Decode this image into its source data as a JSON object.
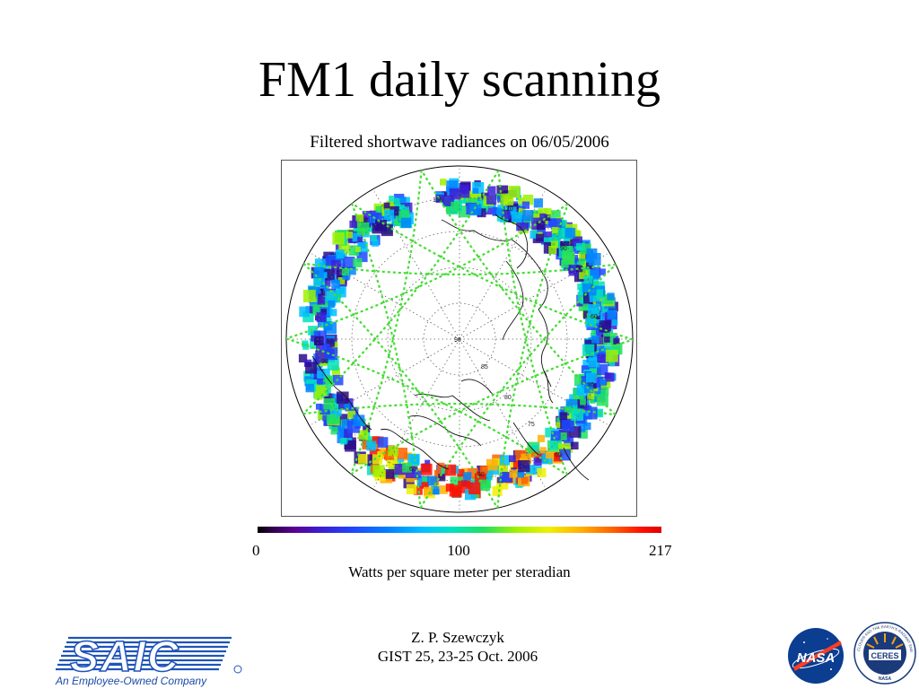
{
  "slide": {
    "title": "FM1 daily scanning",
    "subtitle": "Filtered shortwave radiances on 06/05/2006"
  },
  "map": {
    "grid_labels": [
      "150",
      "120",
      "90",
      "60",
      "30",
      "90",
      "85",
      "80",
      "75",
      "65",
      "90",
      "60",
      "30"
    ],
    "colors": {
      "track": "#44dd33",
      "coast": "#111111",
      "grid": "#666666"
    }
  },
  "colorbar": {
    "min_label": "0",
    "mid_label": "100",
    "max_label": "217",
    "units": "Watts per square meter per steradian"
  },
  "footer": {
    "author": "Z. P. Szewczyk",
    "event": "GIST 25, 23-25 Oct. 2006",
    "saic_logo_text": "SAIC",
    "saic_tagline": "An Employee-Owned Company",
    "nasa_logo_text": "NASA",
    "ceres_logo_text": "CERES",
    "ceres_ring_text": "CLOUDS AND THE EARTH'S RADIANT ENERGY SYSTEM",
    "ceres_bottom_text": "NASA"
  },
  "colors": {
    "saic_blue": "#1f54b8",
    "nasa_blue": "#0b3d91",
    "nasa_red": "#fc3d21"
  }
}
